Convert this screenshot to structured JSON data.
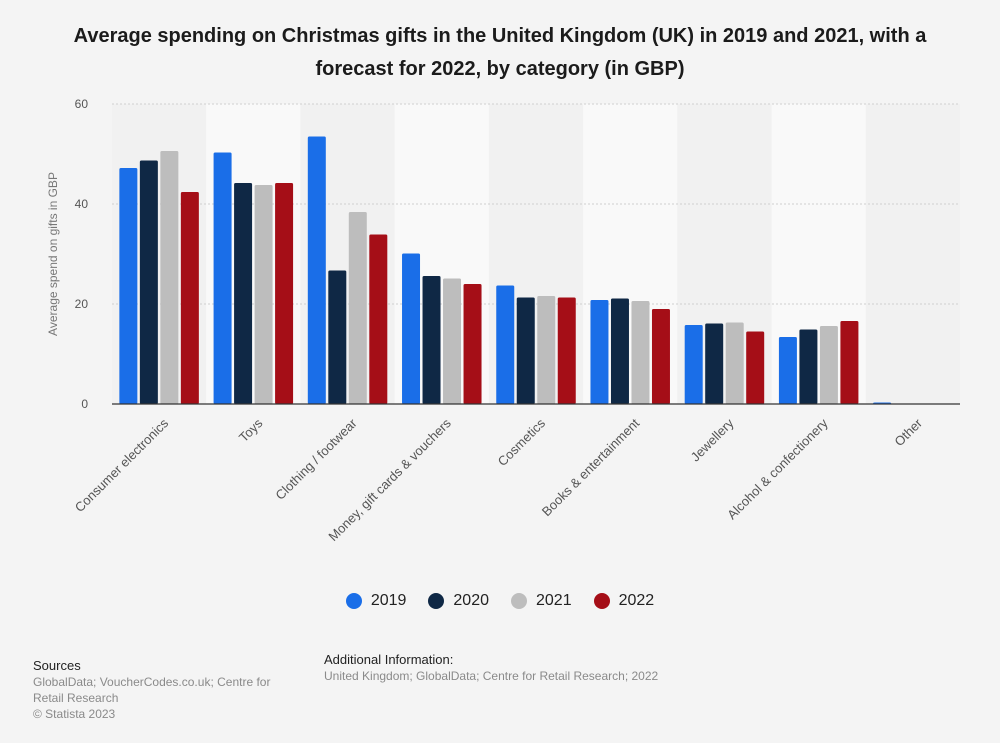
{
  "title": "Average spending on Christmas gifts in the United Kingdom (UK) in 2019 and 2021, with a forecast for 2022, by category (in GBP)",
  "chart_data": {
    "type": "bar",
    "title": "Average spending on Christmas gifts in the United Kingdom (UK) in 2019 and 2021, with a forecast for 2022, by category (in GBP)",
    "xlabel": "",
    "ylabel": "Average spend on gifts in GBP",
    "ylim": [
      0,
      60
    ],
    "yticks": [
      "0",
      "20",
      "40",
      "60"
    ],
    "categories": [
      "Consumer electronics",
      "Toys",
      "Clothing / footwear",
      "Money, gift cards & vouchers",
      "Cosmetics",
      "Books & entertainment",
      "Jewellery",
      "Alcohol & confectionery",
      "Other"
    ],
    "series": [
      {
        "name": "2019",
        "color": "#1a6ee8",
        "values": [
          47.2,
          50.3,
          53.5,
          30.1,
          23.7,
          20.8,
          15.8,
          13.4,
          0.3
        ]
      },
      {
        "name": "2020",
        "color": "#0f2845",
        "values": [
          48.7,
          44.2,
          26.7,
          25.6,
          21.3,
          21.1,
          16.1,
          14.9,
          0
        ]
      },
      {
        "name": "2021",
        "color": "#bdbdbd",
        "values": [
          50.6,
          43.8,
          38.4,
          25.1,
          21.6,
          20.6,
          16.3,
          15.6,
          0
        ]
      },
      {
        "name": "2022",
        "color": "#a50e17",
        "values": [
          42.4,
          44.2,
          33.9,
          24.0,
          21.3,
          19.0,
          14.5,
          16.6,
          0
        ]
      }
    ],
    "grid": true,
    "legend_position": "bottom"
  },
  "sources": {
    "heading": "Sources",
    "line1": "GlobalData; VoucherCodes.co.uk; Centre for Retail Research",
    "copyright": "© Statista 2023"
  },
  "additional_info": {
    "heading": "Additional Information:",
    "text": "United Kingdom; GlobalData; Centre for Retail Research; 2022"
  }
}
